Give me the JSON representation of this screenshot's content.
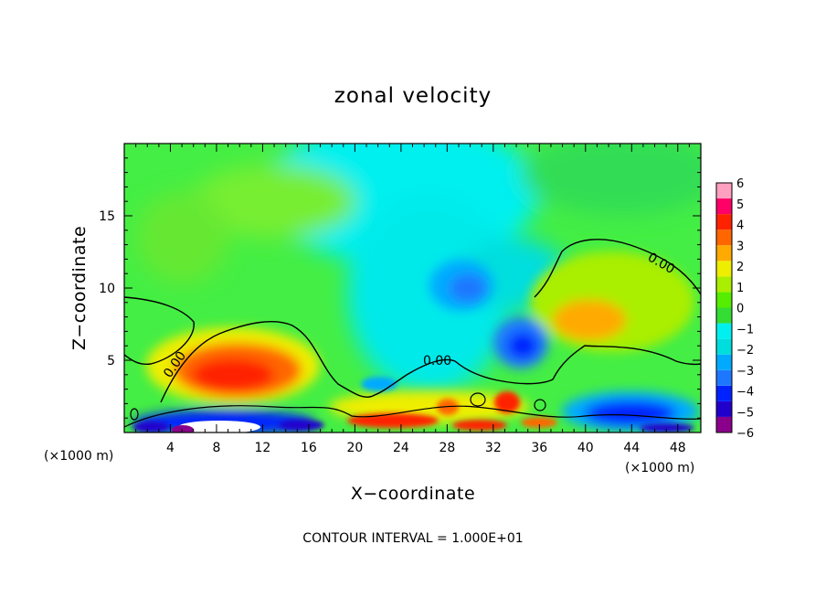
{
  "chart_data": {
    "type": "heatmap",
    "title": "zonal velocity",
    "xlabel": "X−coordinate",
    "ylabel": "Z−coordinate",
    "x_unit": "(×1000 m)",
    "z_unit": "(×1000 m)",
    "xlim": [
      0,
      50
    ],
    "ylim": [
      0,
      20
    ],
    "x_ticks": [
      "4",
      "8",
      "12",
      "16",
      "20",
      "24",
      "28",
      "32",
      "36",
      "40",
      "44",
      "48"
    ],
    "x_tick_values": [
      4,
      8,
      12,
      16,
      20,
      24,
      28,
      32,
      36,
      40,
      44,
      48
    ],
    "y_ticks": [
      "5",
      "10",
      "15"
    ],
    "y_tick_values": [
      5,
      10,
      15
    ],
    "colorbar": {
      "labels": [
        "6",
        "5",
        "4",
        "3",
        "2",
        "1",
        "0",
        "−1",
        "−2",
        "−3",
        "−4",
        "−5",
        "−6"
      ],
      "colors": [
        "#8b008b",
        "#2200cc",
        "#0022ff",
        "#1e78ff",
        "#00aaff",
        "#00dddd",
        "#00f0f0",
        "#33dd33",
        "#55ee00",
        "#aaee00",
        "#eeee00",
        "#ffaa00",
        "#ff6600",
        "#ff2200",
        "#ff0066",
        "#ffa0c0"
      ]
    },
    "contour_labels": [
      "0.00",
      "0.00",
      "0.00"
    ],
    "contour_value": 0.0,
    "features": [
      {
        "x": 10,
        "z": 3.5,
        "value": 4.5
      },
      {
        "x": 41,
        "z": 7.5,
        "value": 3.2
      },
      {
        "x": 30,
        "z": 10,
        "value": -2.8
      },
      {
        "x": 34,
        "z": 6,
        "value": -3.5
      },
      {
        "x": 45,
        "z": 1.5,
        "value": -4
      },
      {
        "x": 10,
        "z": 0.5,
        "value": -5
      }
    ],
    "footer": "CONTOUR INTERVAL = 1.000E+01"
  }
}
